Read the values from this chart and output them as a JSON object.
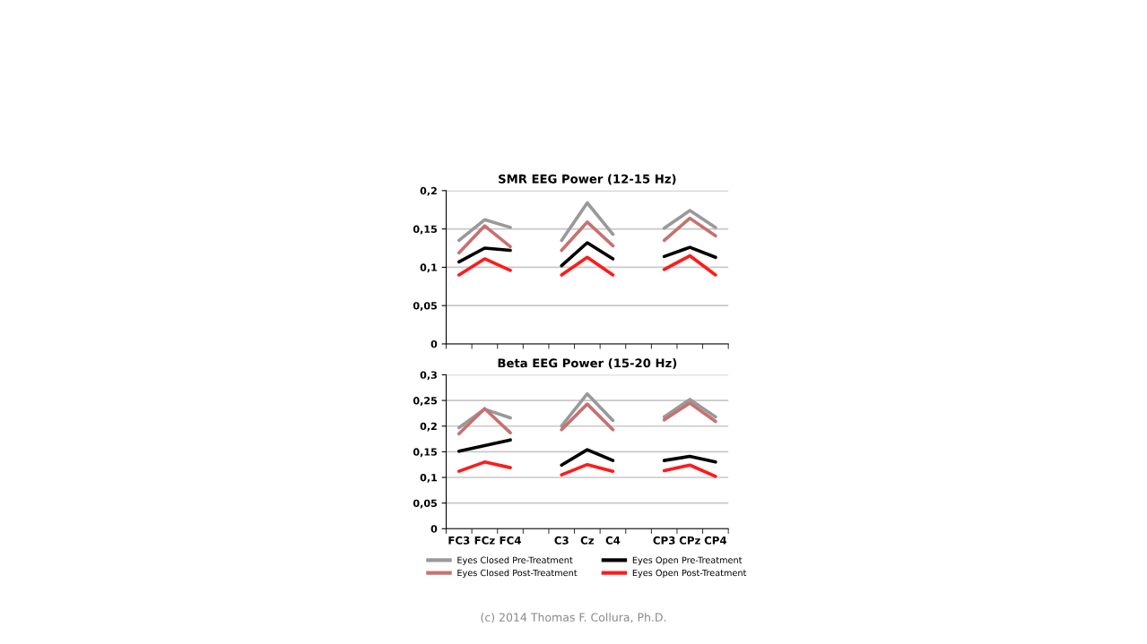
{
  "chart_data": [
    {
      "type": "line",
      "title": "SMR EEG Power (12-15 Hz)",
      "categories": [
        null,
        null,
        null,
        null,
        null,
        null,
        null,
        null,
        null,
        null,
        null
      ],
      "series": [
        {
          "color": "#999999",
          "values": [
            0.135,
            0.162,
            0.152,
            null,
            0.135,
            0.184,
            0.143,
            null,
            0.151,
            0.174,
            0.152
          ]
        },
        {
          "color": "#c87070",
          "values": [
            0.119,
            0.154,
            0.127,
            null,
            0.122,
            0.159,
            0.128,
            null,
            0.135,
            0.164,
            0.141
          ]
        },
        {
          "color": "#000000",
          "values": [
            0.107,
            0.125,
            0.122,
            null,
            0.102,
            0.132,
            0.111,
            null,
            0.114,
            0.126,
            0.113
          ]
        },
        {
          "color": "#ff1a1a",
          "values": [
            0.09,
            0.111,
            0.096,
            null,
            0.09,
            0.113,
            0.09,
            null,
            0.097,
            0.115,
            0.09
          ]
        }
      ],
      "ylim": [
        0,
        0.2
      ],
      "yticks": [
        0,
        {
          "value": 0.05,
          "label": "0,05"
        },
        {
          "value": 0.1,
          "label": "0,1"
        },
        {
          "value": 0.15,
          "label": "0,15"
        },
        {
          "value": 0.2,
          "label": "0,2"
        }
      ],
      "grid": "y",
      "tick_labels": "y",
      "marker": "none",
      "line_style": "solid"
    },
    {
      "type": "line",
      "title": "Beta EEG Power (15-20 Hz)",
      "categories": [
        "FC3",
        "FCz",
        "FC4",
        null,
        "C3",
        "Cz",
        "C4",
        null,
        "CP3",
        "CPz",
        "CP4"
      ],
      "series": [
        {
          "name": "Eyes Closed Pre-Treatment",
          "color": "#999999",
          "values": [
            0.197,
            0.233,
            0.216,
            null,
            0.2,
            0.263,
            0.211,
            null,
            0.218,
            0.252,
            0.218
          ]
        },
        {
          "name": "Eyes Closed Post-Treatment",
          "color": "#c87070",
          "values": [
            0.185,
            0.234,
            0.187,
            null,
            0.193,
            0.243,
            0.193,
            null,
            0.212,
            0.245,
            0.209
          ]
        },
        {
          "name": "Eyes Open Pre-Treatment",
          "color": "#000000",
          "values": [
            0.151,
            0.162,
            0.173,
            null,
            0.124,
            0.154,
            0.133,
            null,
            0.133,
            0.141,
            0.13
          ]
        },
        {
          "name": "Eyes Open Post-Treatment",
          "color": "#ff1a1a",
          "values": [
            0.112,
            0.13,
            0.119,
            null,
            0.105,
            0.125,
            0.112,
            null,
            0.113,
            0.124,
            0.102
          ]
        }
      ],
      "ylim": [
        0,
        0.3
      ],
      "yticks": [
        0,
        {
          "value": 0.05,
          "label": "0,05"
        },
        {
          "value": 0.1,
          "label": "0,1"
        },
        {
          "value": 0.15,
          "label": "0,15"
        },
        {
          "value": 0.2,
          "label": "0,2"
        },
        {
          "value": 0.25,
          "label": "0,25"
        },
        {
          "value": 0.3,
          "label": "0,3"
        }
      ],
      "grid": "y",
      "marker": "none",
      "line_style": "solid",
      "legend": "bottom",
      "annotations": [
        "(c) 2014 Thomas F. Collura, Ph.D."
      ]
    }
  ]
}
